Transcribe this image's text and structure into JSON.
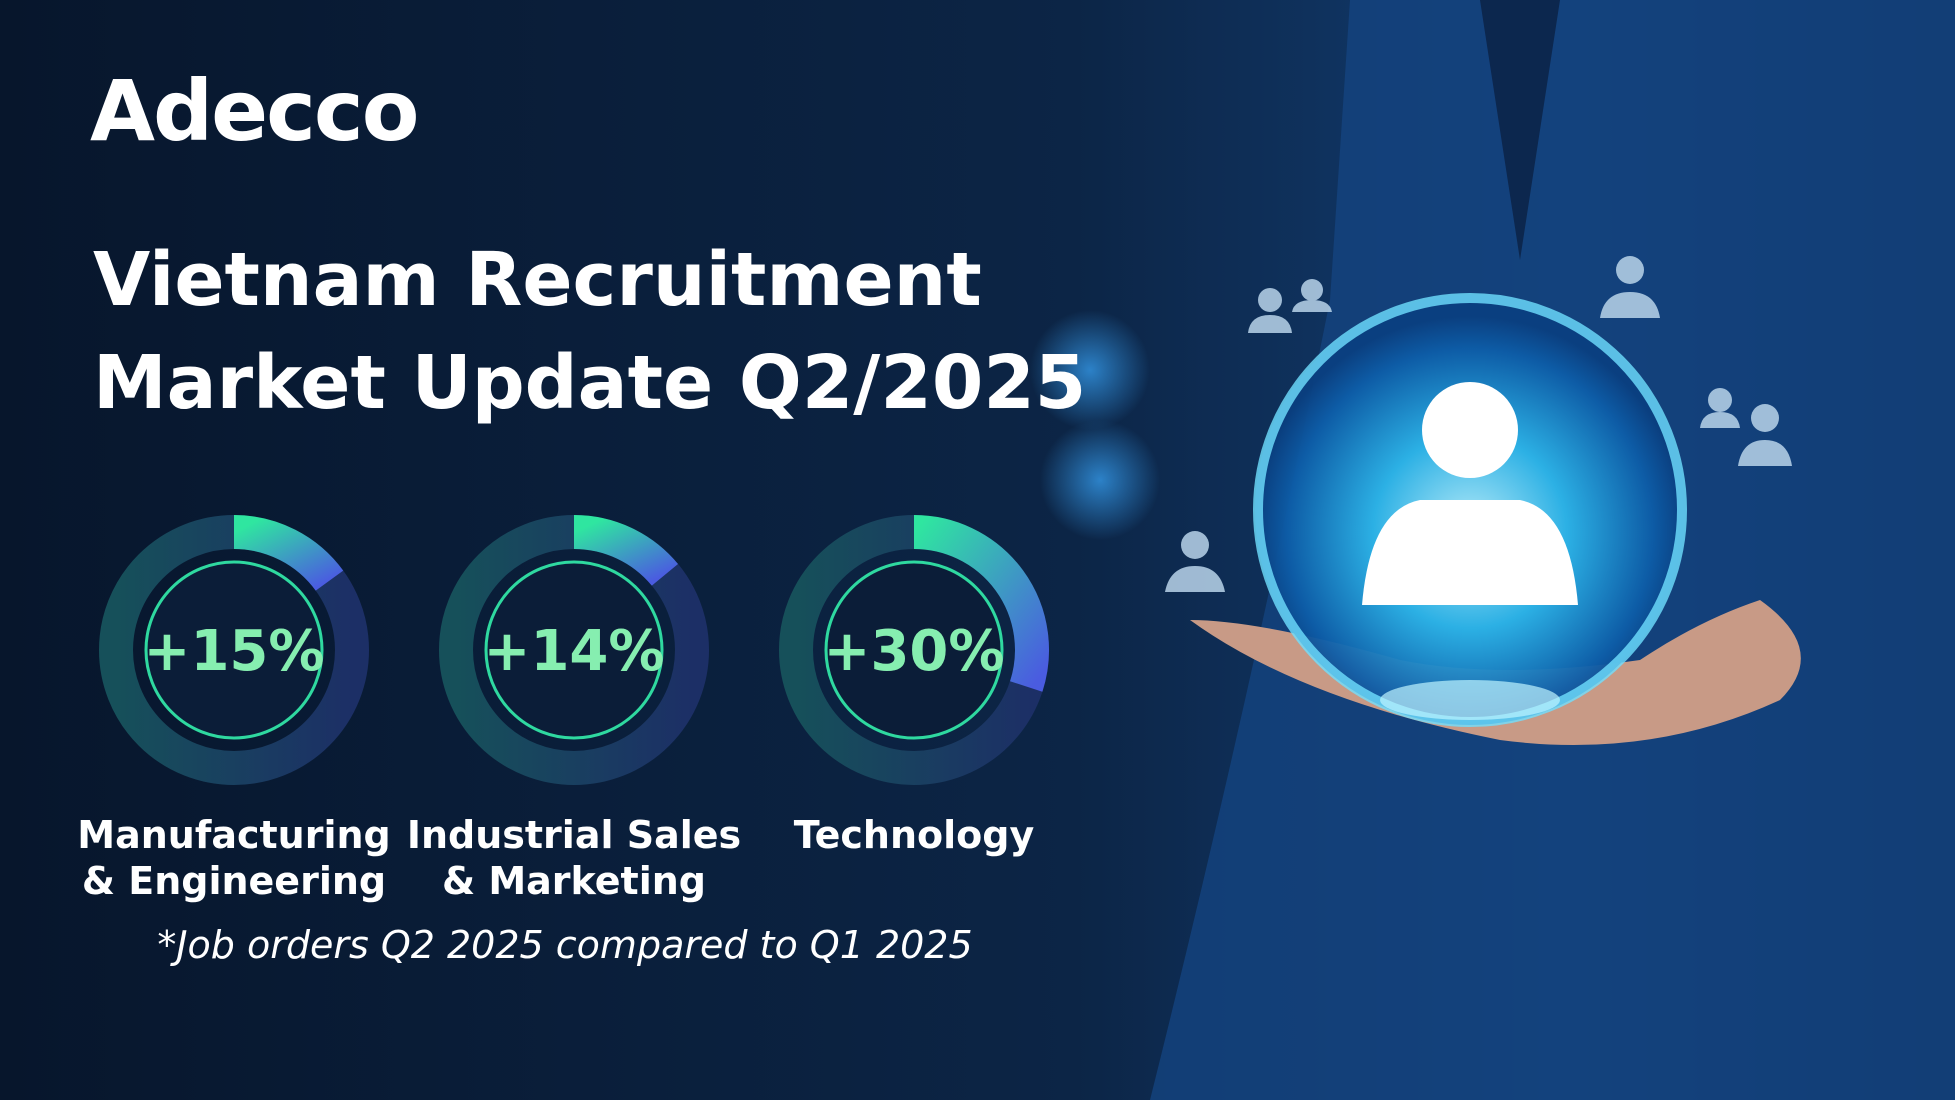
{
  "logo": "Adecco",
  "title": [
    "Vietnam Recruitment",
    "Market Update Q2/2025"
  ],
  "footnote": "*Job orders Q2 2025 compared to Q1 2025",
  "chart_data": [
    {
      "type": "donut",
      "values": [
        15
      ],
      "value_labels": [
        "+15%"
      ],
      "ylim": [
        0,
        100
      ],
      "label": [
        "Manufacturing",
        "& Engineering"
      ]
    },
    {
      "type": "donut",
      "values": [
        14
      ],
      "value_labels": [
        "+14%"
      ],
      "ylim": [
        0,
        100
      ],
      "label": [
        "Industrial Sales",
        "& Marketing"
      ]
    },
    {
      "type": "donut",
      "values": [
        30
      ],
      "value_labels": [
        "+30%"
      ],
      "ylim": [
        0,
        100
      ],
      "label": [
        "Technology"
      ]
    }
  ]
}
